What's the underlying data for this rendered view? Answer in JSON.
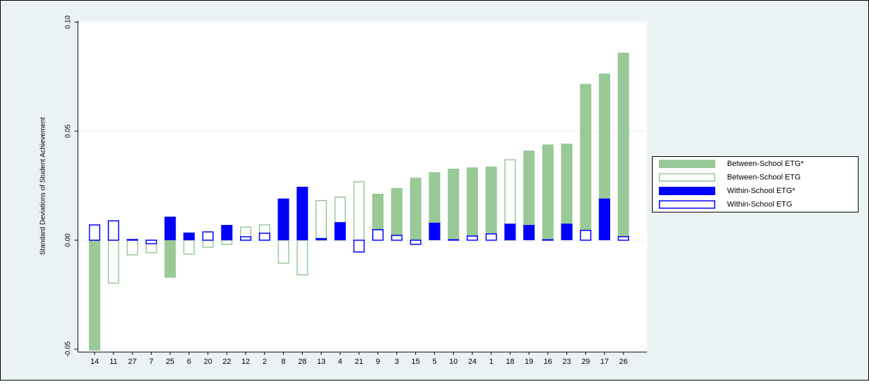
{
  "chart_data": {
    "type": "bar",
    "y_label": "Standard Deviations of Student Achievement",
    "categories": [
      "14",
      "11",
      "27",
      "7",
      "25",
      "6",
      "20",
      "22",
      "12",
      "2",
      "8",
      "28",
      "13",
      "4",
      "21",
      "9",
      "3",
      "15",
      "5",
      "10",
      "24",
      "1",
      "18",
      "19",
      "16",
      "23",
      "29",
      "17",
      "26"
    ],
    "series": [
      {
        "name": "Between-School ETG*",
        "color": "#98c997",
        "filled": true,
        "values": [
          -0.0506,
          null,
          null,
          null,
          -0.0172,
          null,
          null,
          null,
          null,
          null,
          null,
          null,
          null,
          null,
          null,
          0.0213,
          0.0239,
          0.0287,
          0.0312,
          0.0328,
          0.0334,
          0.0338,
          null,
          0.0411,
          0.0439,
          0.0443,
          0.0717,
          0.0764,
          0.086
        ]
      },
      {
        "name": "Between-School ETG",
        "color": "#98c997",
        "filled": false,
        "values": [
          null,
          -0.0197,
          -0.0067,
          -0.0057,
          null,
          -0.0064,
          -0.0032,
          -0.0019,
          0.006,
          0.007,
          -0.0105,
          -0.0159,
          0.0182,
          0.0197,
          0.0268,
          null,
          null,
          null,
          null,
          null,
          null,
          null,
          0.0369,
          null,
          null,
          null,
          null,
          null,
          null
        ]
      },
      {
        "name": "Within-School ETG*",
        "color": "#0000ff",
        "filled": true,
        "values": [
          null,
          null,
          null,
          null,
          0.0108,
          0.0035,
          null,
          0.007,
          null,
          null,
          0.0191,
          0.0245,
          0.001,
          0.0083,
          null,
          null,
          null,
          null,
          0.008,
          null,
          null,
          null,
          0.0076,
          0.007,
          null,
          0.0076,
          null,
          0.0191,
          null
        ]
      },
      {
        "name": "Within-School ETG",
        "color": "#0000ff",
        "filled": false,
        "values": [
          0.007,
          0.0089,
          0.0003,
          -0.0016,
          null,
          null,
          0.0038,
          null,
          0.0016,
          0.0032,
          null,
          null,
          null,
          null,
          -0.0054,
          0.0048,
          0.0022,
          -0.0019,
          null,
          0.0002,
          0.0019,
          0.0029,
          null,
          null,
          0.0002,
          null,
          0.0045,
          null,
          0.0016
        ]
      }
    ],
    "ylim": [
      -0.0513,
      0.1006
    ],
    "yticks": [
      {
        "value": -0.05,
        "label": "-0.05"
      },
      {
        "value": 0,
        "label": "0.00"
      },
      {
        "value": 0.05,
        "label": "0.05"
      },
      {
        "value": 0.1,
        "label": "0.10"
      }
    ],
    "grid": true,
    "legend": "right"
  }
}
